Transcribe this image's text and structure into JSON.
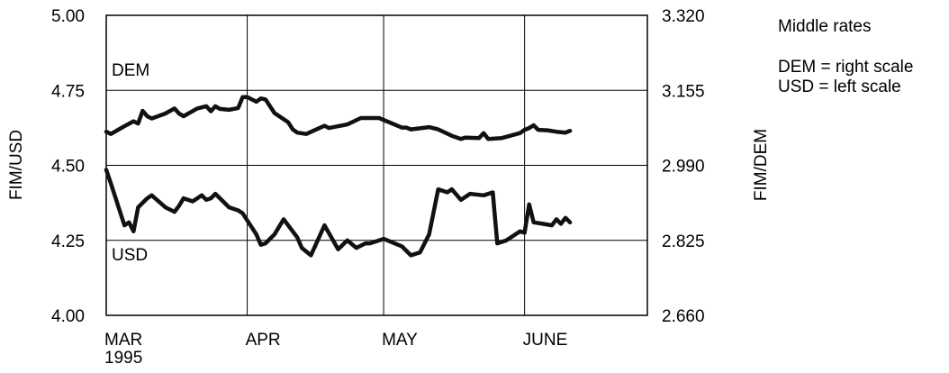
{
  "chart_data": {
    "type": "line",
    "title": "",
    "note": "Middle rates",
    "legend": [
      "DEM = right scale",
      "USD = left scale"
    ],
    "legend_placement": "top-right",
    "grid": true,
    "x_months": [
      "MAR",
      "APR",
      "MAY",
      "JUNE"
    ],
    "x_year": "1995",
    "y_left": {
      "label": "FIM/USD",
      "ylim": [
        4.0,
        5.0
      ],
      "ticks": [
        "5.00",
        "4.75",
        "4.50",
        "4.25",
        "4.00"
      ],
      "tick_values": [
        5.0,
        4.75,
        4.5,
        4.25,
        4.0
      ]
    },
    "y_right": {
      "label": "FIM/DEM",
      "ylim": [
        2.66,
        3.32
      ],
      "ticks": [
        "3.320",
        "3.155",
        "2.990",
        "2.825",
        "2.660"
      ],
      "tick_values": [
        3.32,
        3.155,
        2.99,
        2.825,
        2.66
      ]
    },
    "series": [
      {
        "name": "DEM",
        "axis": "right",
        "x": [
          "1995-03-01",
          "1995-03-02",
          "1995-03-05",
          "1995-03-07",
          "1995-03-08",
          "1995-03-09",
          "1995-03-10",
          "1995-03-11",
          "1995-03-14",
          "1995-03-16",
          "1995-03-17",
          "1995-03-18",
          "1995-03-21",
          "1995-03-23",
          "1995-03-24",
          "1995-03-25",
          "1995-03-26",
          "1995-03-28",
          "1995-03-30",
          "1995-03-31",
          "1995-04-01",
          "1995-04-03",
          "1995-04-04",
          "1995-04-05",
          "1995-04-07",
          "1995-04-10",
          "1995-04-11",
          "1995-04-12",
          "1995-04-14",
          "1995-04-18",
          "1995-04-19",
          "1995-04-21",
          "1995-04-23",
          "1995-04-26",
          "1995-04-30",
          "1995-05-05",
          "1995-05-06",
          "1995-05-07",
          "1995-05-11",
          "1995-05-13",
          "1995-05-16",
          "1995-05-18",
          "1995-05-19",
          "1995-05-22",
          "1995-05-23",
          "1995-05-24",
          "1995-05-27",
          "1995-05-31",
          "1995-06-01",
          "1995-06-02",
          "1995-06-03",
          "1995-06-04",
          "1995-06-06",
          "1995-06-08",
          "1995-06-10",
          "1995-06-11"
        ],
        "values": [
          3.064,
          3.059,
          3.076,
          3.087,
          3.082,
          3.11,
          3.098,
          3.093,
          3.104,
          3.115,
          3.104,
          3.098,
          3.115,
          3.12,
          3.109,
          3.12,
          3.114,
          3.112,
          3.116,
          3.14,
          3.14,
          3.13,
          3.137,
          3.135,
          3.105,
          3.085,
          3.069,
          3.062,
          3.059,
          3.077,
          3.072,
          3.076,
          3.08,
          3.094,
          3.094,
          3.073,
          3.073,
          3.069,
          3.074,
          3.069,
          3.055,
          3.048,
          3.051,
          3.05,
          3.061,
          3.048,
          3.05,
          3.061,
          3.068,
          3.072,
          3.078,
          3.068,
          3.067,
          3.064,
          3.062,
          3.066
        ]
      },
      {
        "name": "USD",
        "axis": "left",
        "x": [
          "1995-03-01",
          "1995-03-02",
          "1995-03-05",
          "1995-03-06",
          "1995-03-07",
          "1995-03-08",
          "1995-03-09",
          "1995-03-10",
          "1995-03-11",
          "1995-03-14",
          "1995-03-16",
          "1995-03-17",
          "1995-03-18",
          "1995-03-20",
          "1995-03-22",
          "1995-03-23",
          "1995-03-24",
          "1995-03-25",
          "1995-03-28",
          "1995-03-30",
          "1995-03-31",
          "1995-04-03",
          "1995-04-04",
          "1995-04-05",
          "1995-04-07",
          "1995-04-09",
          "1995-04-12",
          "1995-04-13",
          "1995-04-15",
          "1995-04-18",
          "1995-04-21",
          "1995-04-23",
          "1995-04-25",
          "1995-04-27",
          "1995-04-28",
          "1995-05-01",
          "1995-05-05",
          "1995-05-06",
          "1995-05-07",
          "1995-05-09",
          "1995-05-11",
          "1995-05-13",
          "1995-05-14",
          "1995-05-15",
          "1995-05-16",
          "1995-05-18",
          "1995-05-19",
          "1995-05-20",
          "1995-05-23",
          "1995-05-25",
          "1995-05-26",
          "1995-05-28",
          "1995-05-31",
          "1995-06-01",
          "1995-06-02",
          "1995-06-03",
          "1995-06-05",
          "1995-06-07",
          "1995-06-08",
          "1995-06-09",
          "1995-06-10",
          "1995-06-11"
        ],
        "values": [
          4.485,
          4.44,
          4.3,
          4.31,
          4.28,
          4.36,
          4.375,
          4.39,
          4.4,
          4.36,
          4.345,
          4.365,
          4.39,
          4.38,
          4.4,
          4.385,
          4.39,
          4.405,
          4.36,
          4.35,
          4.34,
          4.27,
          4.235,
          4.24,
          4.27,
          4.32,
          4.26,
          4.225,
          4.2,
          4.3,
          4.22,
          4.25,
          4.225,
          4.24,
          4.24,
          4.255,
          4.23,
          4.215,
          4.2,
          4.21,
          4.27,
          4.42,
          4.415,
          4.41,
          4.42,
          4.385,
          4.395,
          4.405,
          4.4,
          4.41,
          4.24,
          4.25,
          4.28,
          4.275,
          4.37,
          4.31,
          4.305,
          4.3,
          4.32,
          4.305,
          4.325,
          4.31
        ]
      }
    ],
    "series_labels": [
      "DEM",
      "USD"
    ]
  }
}
